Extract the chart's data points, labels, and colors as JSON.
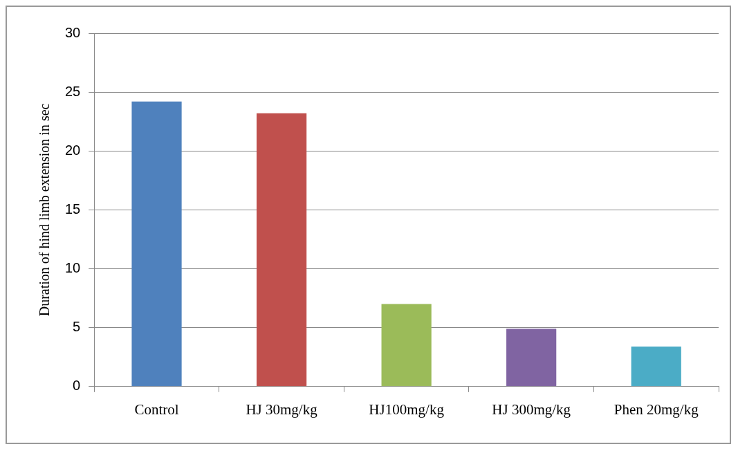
{
  "chart_data": {
    "type": "bar",
    "ylabel": "Duration of hind limb extension in sec",
    "categories": [
      "Control",
      "HJ 30mg/kg",
      "HJ100mg/kg",
      "HJ 300mg/kg",
      "Phen 20mg/kg"
    ],
    "values": [
      24.2,
      23.2,
      7.0,
      4.9,
      3.4
    ],
    "colors": [
      "#4f81bd",
      "#c0504d",
      "#9bbb59",
      "#8064a2",
      "#4bacc6"
    ],
    "ylim": [
      0,
      30
    ],
    "yticks": [
      0,
      5,
      10,
      15,
      20,
      25,
      30
    ],
    "grid": "y",
    "legend": false
  }
}
